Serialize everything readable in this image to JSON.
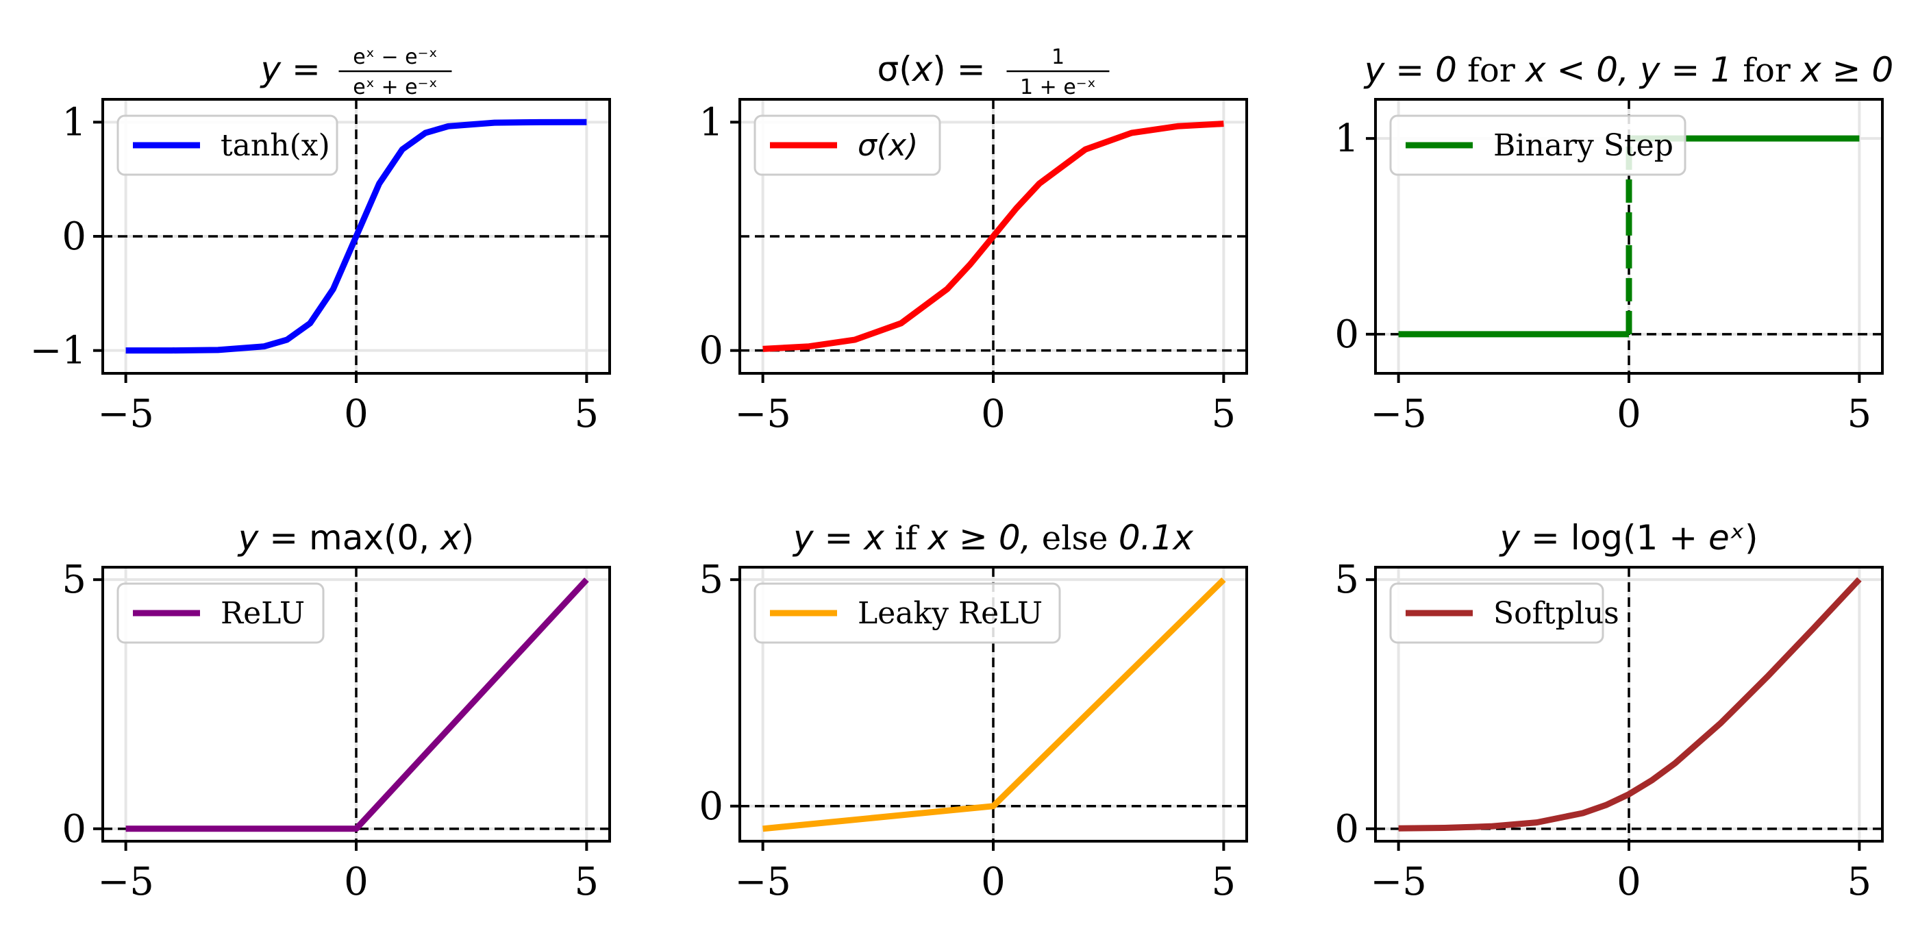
{
  "chart_data": [
    {
      "type": "line",
      "function": "tanh",
      "title": "y = (e^x − e^−x) / (e^x + e^−x)",
      "title_parts": {
        "lhs": "y =",
        "num": "eˣ − e⁻ˣ",
        "den": "eˣ + e⁻ˣ"
      },
      "xlim": [
        -5.5,
        5.5
      ],
      "ylim": [
        -1.2,
        1.2
      ],
      "xticks": [
        -5,
        0,
        5
      ],
      "xticklabels": [
        "−5",
        "0",
        "5"
      ],
      "yticks": [
        -1,
        0,
        1
      ],
      "yticklabels": [
        "−1",
        "0",
        "1"
      ],
      "hline": 0,
      "vline": 0,
      "grid": true,
      "legend_position": "upper-left",
      "series": [
        {
          "name": "tanh(x)",
          "color": "#0000ff",
          "style": "solid",
          "x": [
            -5,
            -4,
            -3,
            -2,
            -1.5,
            -1,
            -0.5,
            0,
            0.5,
            1,
            1.5,
            2,
            3,
            4,
            5
          ],
          "y": [
            -0.9999,
            -0.9993,
            -0.9951,
            -0.964,
            -0.9051,
            -0.7616,
            -0.4621,
            0,
            0.4621,
            0.7616,
            0.9051,
            0.964,
            0.9951,
            0.9993,
            0.9999
          ]
        }
      ]
    },
    {
      "type": "line",
      "function": "sigmoid",
      "title": "σ(x) = 1 / (1 + e^−x)",
      "title_parts": {
        "lhs": "σ(x) =",
        "num": "1",
        "den": "1 + e⁻ˣ"
      },
      "xlim": [
        -5.5,
        5.5
      ],
      "ylim": [
        -0.1,
        1.1
      ],
      "xticks": [
        -5,
        0,
        5
      ],
      "xticklabels": [
        "−5",
        "0",
        "5"
      ],
      "yticks": [
        0,
        1
      ],
      "yticklabels": [
        "0",
        "1"
      ],
      "hline": 0,
      "extra_hline": 0.5,
      "vline": 0,
      "grid": true,
      "legend_position": "upper-left",
      "series": [
        {
          "name": "σ(x)",
          "color": "#ff0000",
          "style": "solid",
          "x": [
            -5,
            -4,
            -3,
            -2,
            -1,
            -0.5,
            0,
            0.5,
            1,
            2,
            3,
            4,
            5
          ],
          "y": [
            0.0067,
            0.018,
            0.0474,
            0.1192,
            0.2689,
            0.3775,
            0.5,
            0.6225,
            0.7311,
            0.8808,
            0.9526,
            0.982,
            0.9933
          ]
        }
      ]
    },
    {
      "type": "line",
      "function": "step",
      "title": "y = 0 for x < 0, y = 1 for x ≥ 0",
      "title_parts": {
        "a": "y = 0",
        "b": " for ",
        "c": "x < 0, y = 1",
        "d": " for ",
        "e": "x ≥ 0"
      },
      "xlim": [
        -5.5,
        5.5
      ],
      "ylim": [
        -0.2,
        1.2
      ],
      "xticks": [
        -5,
        0,
        5
      ],
      "xticklabels": [
        "−5",
        "0",
        "5"
      ],
      "yticks": [
        0,
        1
      ],
      "yticklabels": [
        "0",
        "1"
      ],
      "hline": 0,
      "vline": 0,
      "grid": true,
      "legend_position": "upper-left",
      "series": [
        {
          "name": "Binary Step",
          "color": "#008000",
          "style": "solid",
          "segments": [
            {
              "x": [
                -5,
                0
              ],
              "y": [
                0,
                0
              ],
              "style": "solid"
            },
            {
              "x": [
                0,
                0
              ],
              "y": [
                0,
                1
              ],
              "style": "dashed"
            },
            {
              "x": [
                0,
                5
              ],
              "y": [
                1,
                1
              ],
              "style": "solid"
            }
          ]
        }
      ]
    },
    {
      "type": "line",
      "function": "relu",
      "title": "y = max(0, x)",
      "title_parts": {
        "a": "y",
        "b": " = max(0, ",
        "c": "x",
        "d": ")"
      },
      "xlim": [
        -5.5,
        5.5
      ],
      "ylim": [
        -0.25,
        5.25
      ],
      "xticks": [
        -5,
        0,
        5
      ],
      "xticklabels": [
        "−5",
        "0",
        "5"
      ],
      "yticks": [
        0,
        5
      ],
      "yticklabels": [
        "0",
        "5"
      ],
      "hline": 0,
      "vline": 0,
      "grid": true,
      "legend_position": "upper-left",
      "series": [
        {
          "name": "ReLU",
          "color": "#800080",
          "style": "solid",
          "x": [
            -5,
            0,
            5
          ],
          "y": [
            0,
            0,
            5
          ]
        }
      ]
    },
    {
      "type": "line",
      "function": "leaky_relu",
      "title": "y = x if x ≥ 0, else 0.1x",
      "title_parts": {
        "a": "y = x",
        "b": " if ",
        "c": "x ≥ 0,",
        "d": " else ",
        "e": "0.1x"
      },
      "xlim": [
        -5.5,
        5.5
      ],
      "ylim": [
        -0.775,
        5.275
      ],
      "xticks": [
        -5,
        0,
        5
      ],
      "xticklabels": [
        "−5",
        "0",
        "5"
      ],
      "yticks": [
        0,
        5
      ],
      "yticklabels": [
        "0",
        "5"
      ],
      "hline": 0,
      "vline": 0,
      "grid": true,
      "legend_position": "upper-left",
      "series": [
        {
          "name": "Leaky ReLU",
          "color": "#ffa500",
          "style": "solid",
          "x": [
            -5,
            0,
            5
          ],
          "y": [
            -0.5,
            0,
            5
          ]
        }
      ]
    },
    {
      "type": "line",
      "function": "softplus",
      "title": "y = log(1 + e^x)",
      "title_parts": {
        "a": "y",
        "b": " = log(1 + ",
        "c": "eˣ",
        "d": ")"
      },
      "xlim": [
        -5.5,
        5.5
      ],
      "ylim": [
        -0.25,
        5.25
      ],
      "xticks": [
        -5,
        0,
        5
      ],
      "xticklabels": [
        "−5",
        "0",
        "5"
      ],
      "yticks": [
        0,
        5
      ],
      "yticklabels": [
        "0",
        "5"
      ],
      "hline": 0,
      "vline": 0,
      "grid": true,
      "legend_position": "upper-left",
      "series": [
        {
          "name": "Softplus",
          "color": "#a52a2a",
          "style": "solid",
          "x": [
            -5,
            -4,
            -3,
            -2,
            -1,
            -0.5,
            0,
            0.5,
            1,
            2,
            3,
            4,
            5
          ],
          "y": [
            0.0067,
            0.0181,
            0.0486,
            0.1269,
            0.3133,
            0.4741,
            0.6931,
            0.9741,
            1.3133,
            2.1269,
            3.0486,
            4.0181,
            5.0067
          ]
        }
      ]
    }
  ]
}
